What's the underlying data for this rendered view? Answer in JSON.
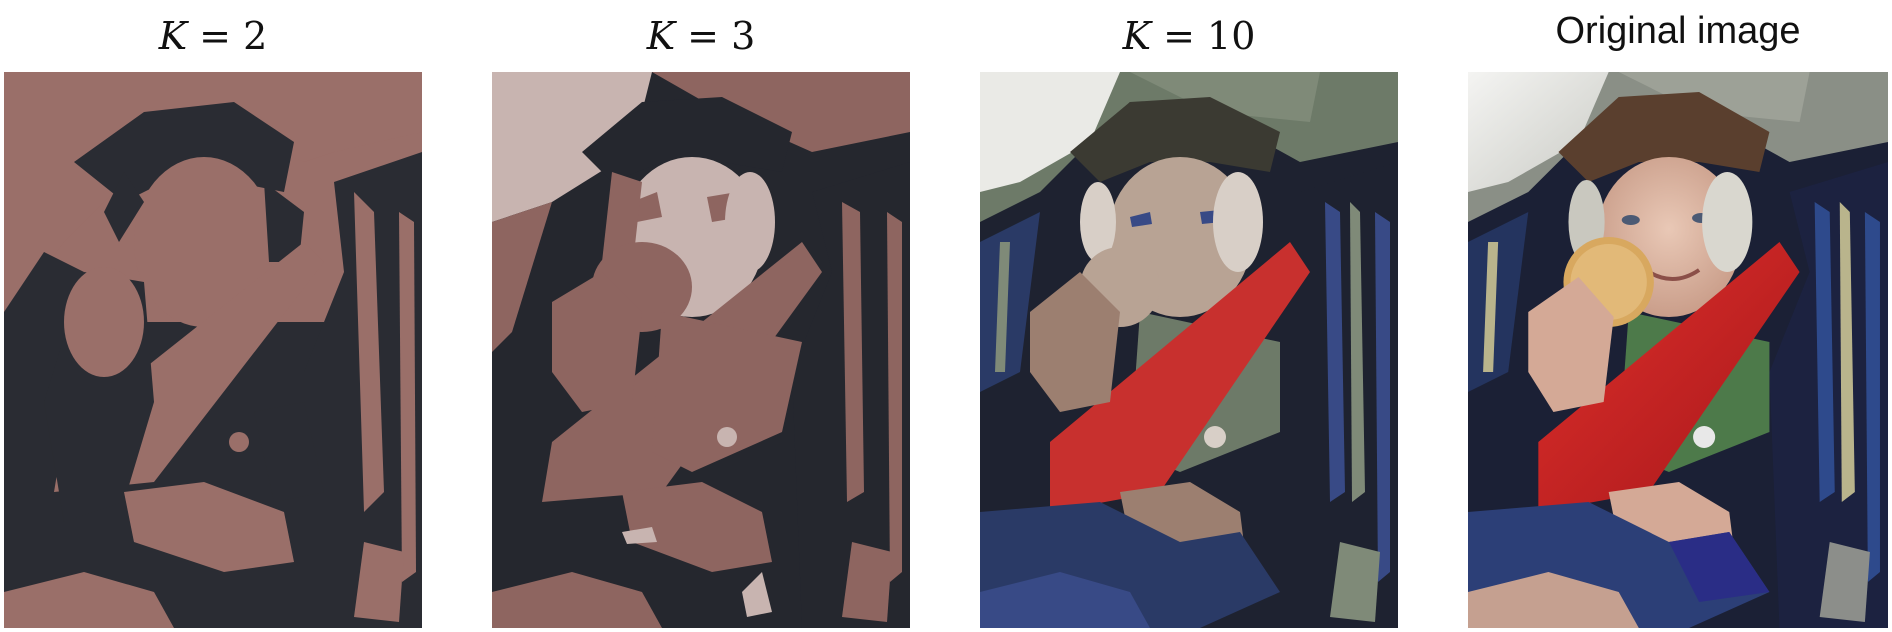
{
  "figure": {
    "panels": [
      {
        "label_var": "K",
        "label_eq": " = ",
        "label_val": "2",
        "kind": "quantized",
        "clusters": 2,
        "palette": [
          "#2a2c33",
          "#9a6f69"
        ],
        "image": "boy-in-airplane-seat-k2"
      },
      {
        "label_var": "K",
        "label_eq": " = ",
        "label_val": "3",
        "kind": "quantized",
        "clusters": 3,
        "palette": [
          "#25272e",
          "#8e6560",
          "#c8b4b0"
        ],
        "image": "boy-in-airplane-seat-k3"
      },
      {
        "label_var": "K",
        "label_eq": " = ",
        "label_val": "10",
        "kind": "quantized",
        "clusters": 10,
        "palette": [
          "#1e2230",
          "#2a3a66",
          "#6d7a68",
          "#b8a394",
          "#d8cfc7",
          "#c8302e",
          "#7f8a78",
          "#384a86",
          "#9c7f70",
          "#eaeae6"
        ],
        "image": "boy-in-airplane-seat-k10"
      },
      {
        "label": "Original image",
        "kind": "original",
        "image": "boy-in-airplane-seat-original"
      }
    ]
  }
}
